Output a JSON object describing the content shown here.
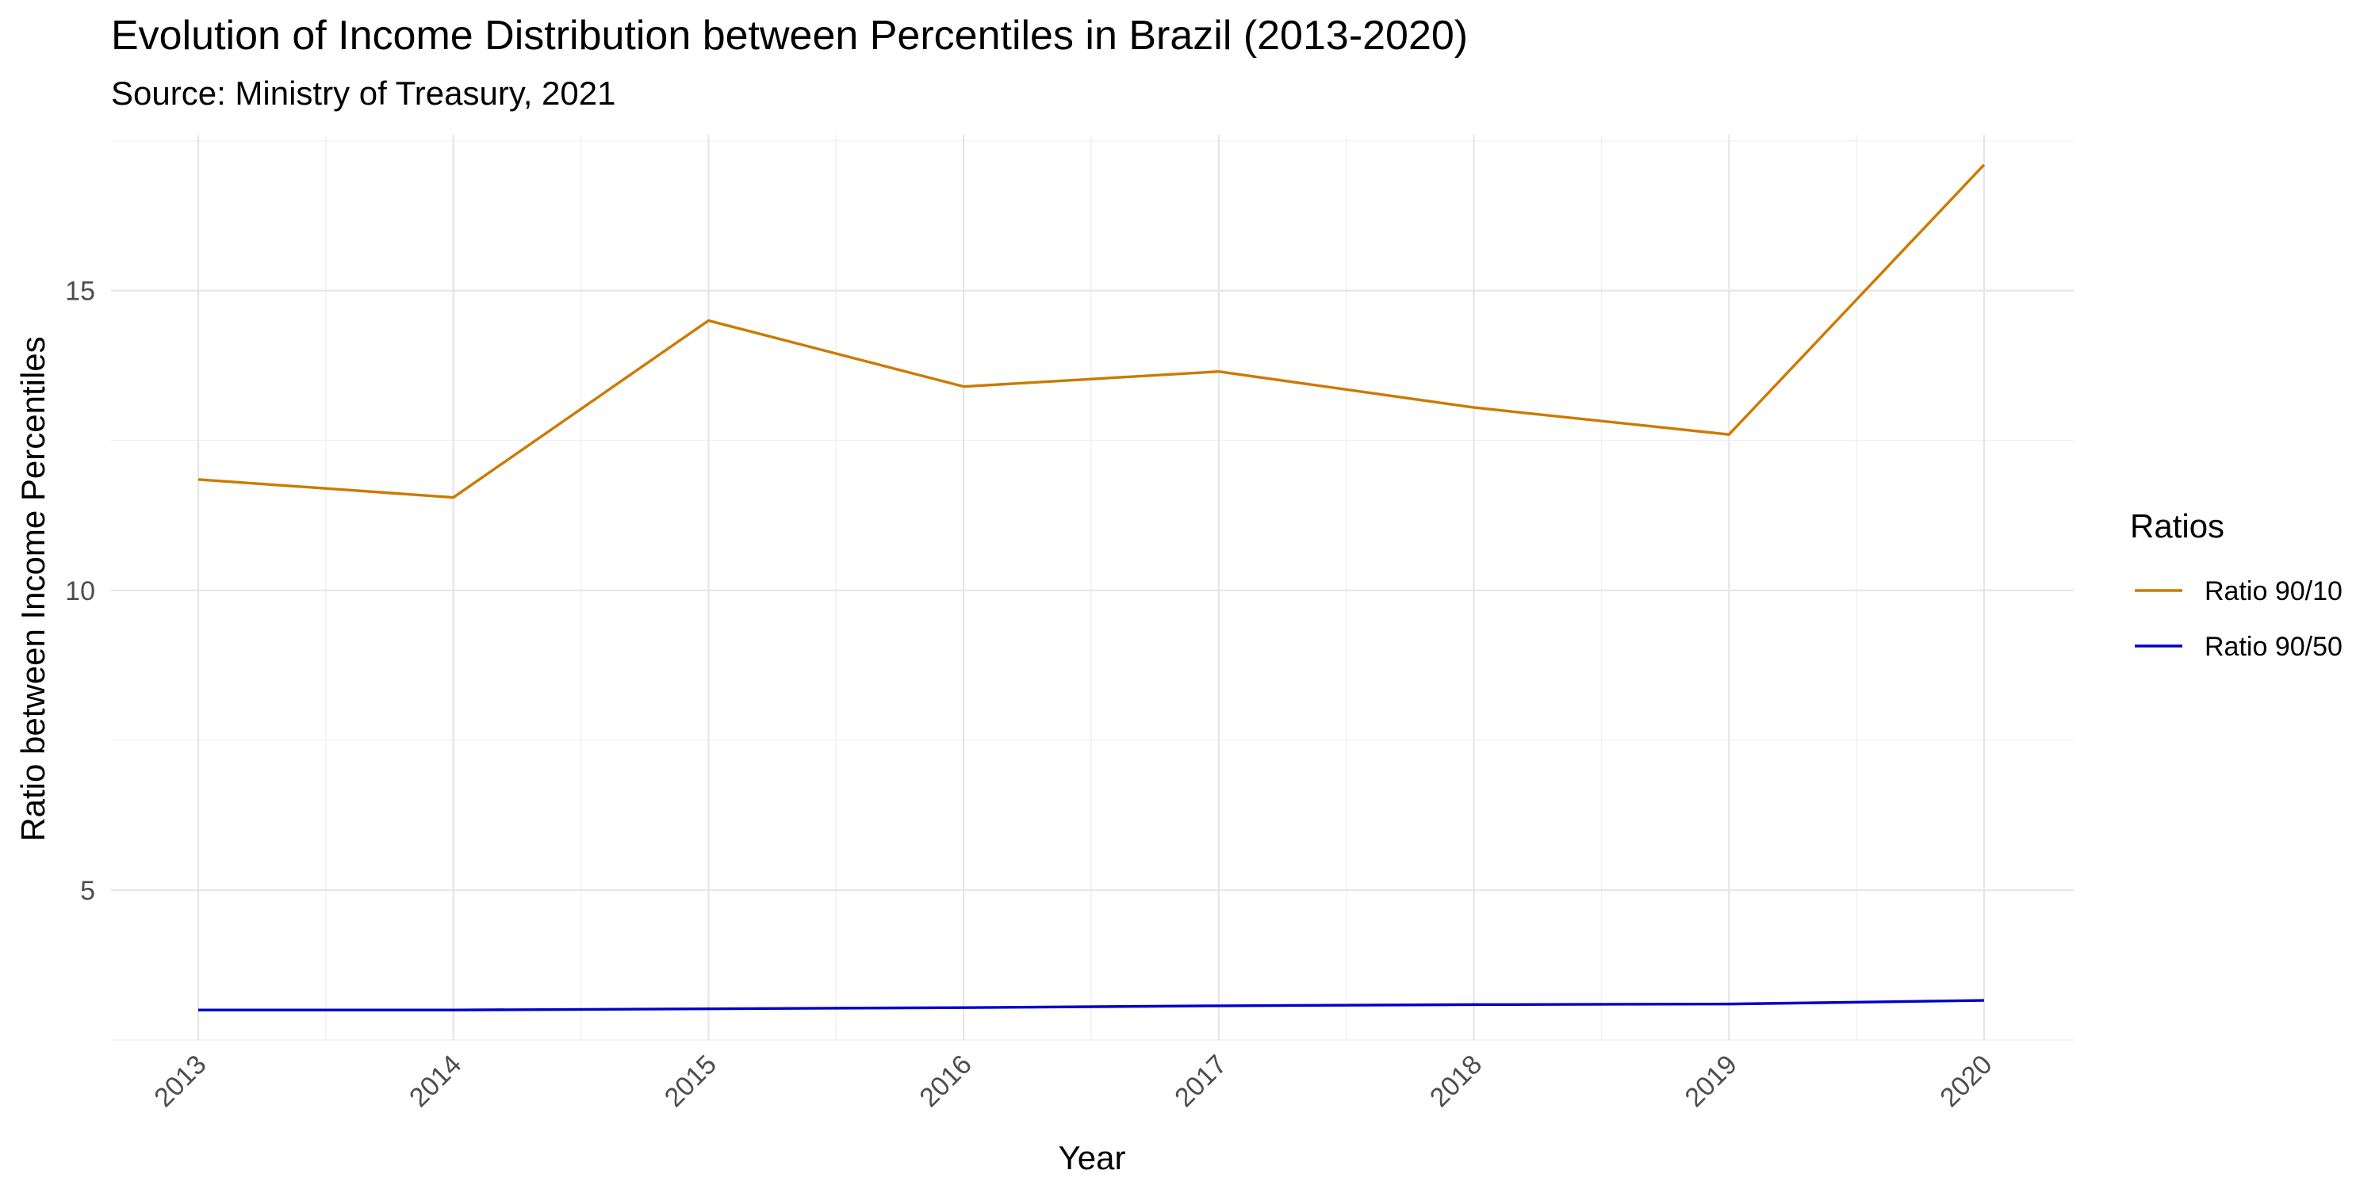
{
  "chart_data": {
    "type": "line",
    "title": "Evolution of Income Distribution between Percentiles in Brazil (2013-2020)",
    "subtitle": "Source: Ministry of Treasury, 2021",
    "xlabel": "Year",
    "ylabel": "Ratio between Income Percentiles",
    "x": [
      "2013",
      "2014",
      "2015",
      "2016",
      "2017",
      "2018",
      "2019",
      "2020"
    ],
    "yticks": [
      5,
      10,
      15
    ],
    "ylim": [
      2.5,
      17.6
    ],
    "grid": true,
    "legend": {
      "title": "Ratios",
      "position": "right"
    },
    "series": [
      {
        "name": "Ratio 90/10",
        "color": "#CC7A00",
        "values": [
          11.85,
          11.55,
          14.5,
          13.4,
          13.65,
          13.05,
          12.6,
          17.1
        ]
      },
      {
        "name": "Ratio 90/50",
        "color": "#0000CC",
        "values": [
          3.0,
          3.0,
          3.02,
          3.04,
          3.07,
          3.09,
          3.1,
          3.16
        ]
      }
    ]
  }
}
